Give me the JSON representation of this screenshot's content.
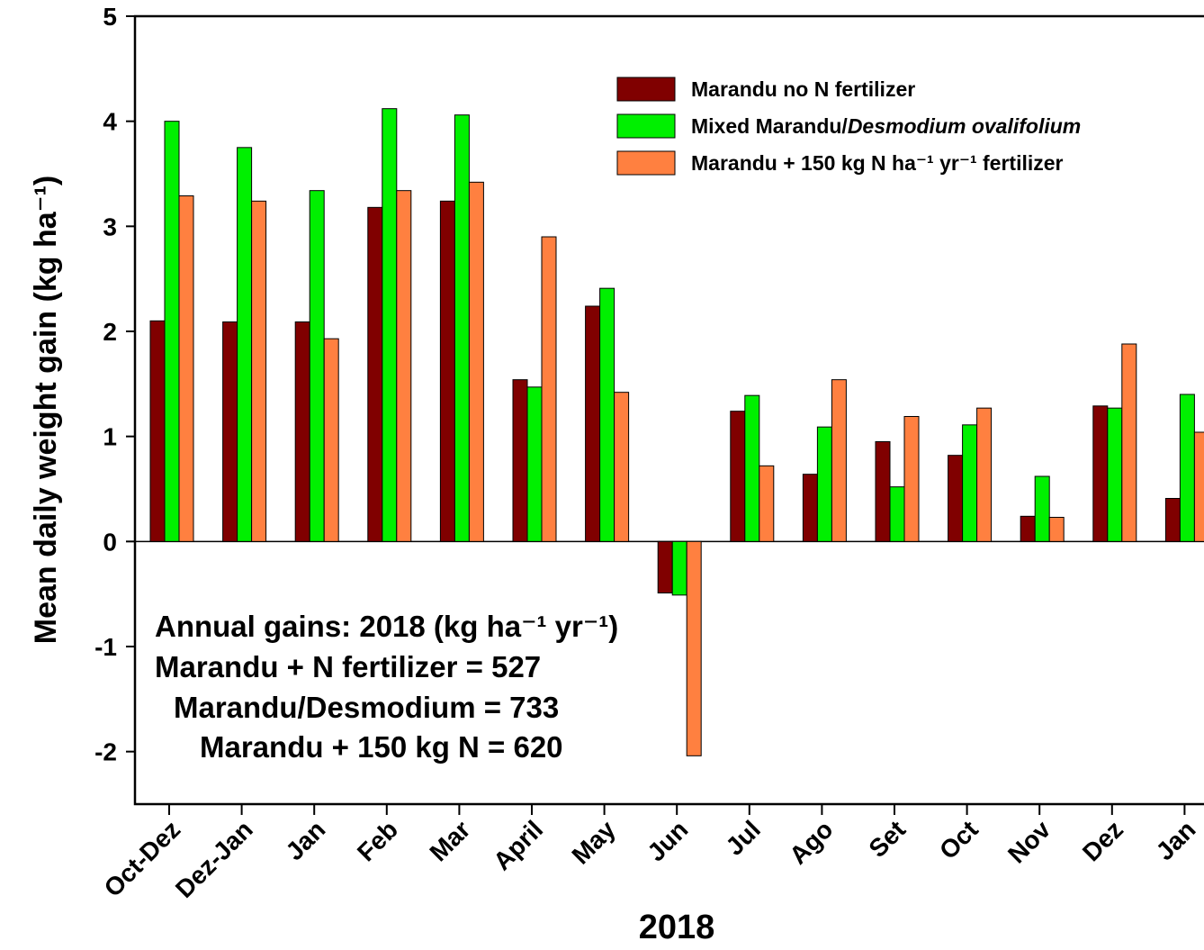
{
  "chart_data": {
    "type": "bar",
    "x_label": "2018",
    "y_label": "Mean daily weight gain (kg ha⁻¹)",
    "categories": [
      "Oct-Dez",
      "Dez-Jan",
      "Jan",
      "Feb",
      "Mar",
      "April",
      "May",
      "Jun",
      "Jul",
      "Ago",
      "Set",
      "Oct",
      "Nov",
      "Dez",
      "Jan"
    ],
    "series": [
      {
        "name": "Marandu no N fertilizer",
        "color": "#800000",
        "values": [
          2.1,
          2.09,
          2.09,
          3.18,
          3.24,
          1.54,
          2.24,
          -0.49,
          1.24,
          0.64,
          0.95,
          0.82,
          0.24,
          1.29,
          0.41
        ]
      },
      {
        "name": "Mixed Marandu/Desmodium ovalifolium",
        "color": "#00f000",
        "values": [
          4.0,
          3.75,
          3.34,
          4.12,
          4.06,
          1.47,
          2.41,
          -0.51,
          1.39,
          1.09,
          0.52,
          1.11,
          0.62,
          1.27,
          1.4
        ]
      },
      {
        "name": "Marandu + 150 kg N ha⁻¹ yr⁻¹ fertilizer",
        "color": "#ff8040",
        "values": [
          3.29,
          3.24,
          1.93,
          3.34,
          3.42,
          2.9,
          1.42,
          -2.04,
          0.72,
          1.54,
          1.19,
          1.27,
          0.23,
          1.88,
          1.04
        ]
      }
    ],
    "ylim": [
      -2.5,
      5
    ],
    "yticks": [
      -2,
      -1,
      0,
      1,
      2,
      3,
      4,
      5
    ],
    "annotations": [
      "Annual gains: 2018  (kg ha⁻¹ yr⁻¹)",
      "Marandu + N fertilizer = 527",
      "Marandu/Desmodium = 733",
      "Marandu + 150 kg N = 620"
    ]
  }
}
